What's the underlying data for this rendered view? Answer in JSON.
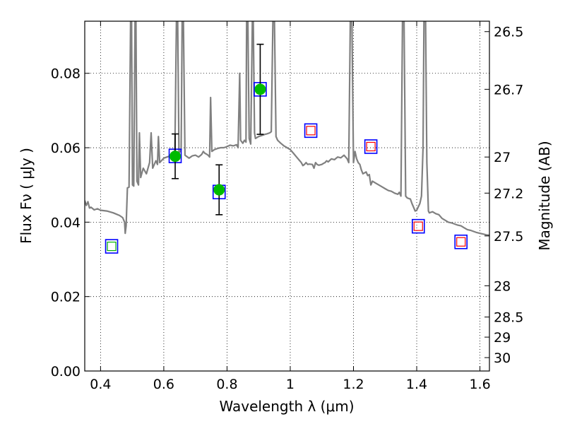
{
  "chart_data": {
    "type": "scatter",
    "xlabel": "Wavelength  λ (μm)",
    "ylabel": "Flux  Fν  ( μJy )",
    "y2label": "Magnitude (AB)",
    "xlim": [
      0.35,
      1.63
    ],
    "ylim": [
      0.0,
      0.094
    ],
    "grid": true,
    "x_ticks": [
      0.4,
      0.6,
      0.8,
      1.0,
      1.2,
      1.4,
      1.6
    ],
    "x_tick_labels": [
      "0.4",
      "0.6",
      "0.8",
      "1",
      "1.2",
      "1.4",
      "1.6"
    ],
    "y_ticks": [
      0.0,
      0.02,
      0.04,
      0.06,
      0.08
    ],
    "y_tick_labels": [
      "0.00",
      "0.02",
      "0.04",
      "0.06",
      "0.08"
    ],
    "y2_ticks": [
      {
        "label": "26.5",
        "flux": 0.0912
      },
      {
        "label": "26.7",
        "flux": 0.0757
      },
      {
        "label": "27",
        "flux": 0.0575
      },
      {
        "label": "27.2",
        "flux": 0.0478
      },
      {
        "label": "27.5",
        "flux": 0.0363
      },
      {
        "label": "28",
        "flux": 0.0229
      },
      {
        "label": "28.5",
        "flux": 0.0145
      },
      {
        "label": "29",
        "flux": 0.0091
      },
      {
        "label": "30",
        "flux": 0.0036
      }
    ],
    "series": [
      {
        "kind": "model_sed",
        "color": "#808080",
        "points": [
          [
            0.35,
            0.0458
          ],
          [
            0.355,
            0.0445
          ],
          [
            0.36,
            0.0455
          ],
          [
            0.365,
            0.0438
          ],
          [
            0.37,
            0.044
          ],
          [
            0.38,
            0.0433
          ],
          [
            0.39,
            0.0436
          ],
          [
            0.4,
            0.0432
          ],
          [
            0.42,
            0.043
          ],
          [
            0.44,
            0.0425
          ],
          [
            0.46,
            0.0418
          ],
          [
            0.47,
            0.0412
          ],
          [
            0.476,
            0.04
          ],
          [
            0.478,
            0.037
          ],
          [
            0.481,
            0.039
          ],
          [
            0.485,
            0.0492
          ],
          [
            0.49,
            0.0494
          ],
          [
            0.495,
            0.094
          ],
          [
            0.498,
            0.094
          ],
          [
            0.501,
            0.05
          ],
          [
            0.505,
            0.0497
          ],
          [
            0.509,
            0.094
          ],
          [
            0.512,
            0.094
          ],
          [
            0.515,
            0.051
          ],
          [
            0.52,
            0.05
          ],
          [
            0.523,
            0.064
          ],
          [
            0.527,
            0.052
          ],
          [
            0.535,
            0.0545
          ],
          [
            0.545,
            0.053
          ],
          [
            0.555,
            0.056
          ],
          [
            0.56,
            0.064
          ],
          [
            0.565,
            0.0545
          ],
          [
            0.575,
            0.0565
          ],
          [
            0.58,
            0.0555
          ],
          [
            0.583,
            0.063
          ],
          [
            0.587,
            0.056
          ],
          [
            0.6,
            0.0572
          ],
          [
            0.61,
            0.0575
          ],
          [
            0.62,
            0.0578
          ],
          [
            0.635,
            0.0588
          ],
          [
            0.64,
            0.094
          ],
          [
            0.644,
            0.094
          ],
          [
            0.648,
            0.0585
          ],
          [
            0.655,
            0.0595
          ],
          [
            0.658,
            0.094
          ],
          [
            0.662,
            0.094
          ],
          [
            0.667,
            0.058
          ],
          [
            0.675,
            0.0575
          ],
          [
            0.68,
            0.0572
          ],
          [
            0.685,
            0.0575
          ],
          [
            0.69,
            0.0578
          ],
          [
            0.7,
            0.058
          ],
          [
            0.71,
            0.0575
          ],
          [
            0.72,
            0.0582
          ],
          [
            0.725,
            0.059
          ],
          [
            0.73,
            0.0585
          ],
          [
            0.735,
            0.0583
          ],
          [
            0.74,
            0.058
          ],
          [
            0.745,
            0.0575
          ],
          [
            0.748,
            0.0735
          ],
          [
            0.752,
            0.059
          ],
          [
            0.76,
            0.0595
          ],
          [
            0.77,
            0.0598
          ],
          [
            0.78,
            0.06
          ],
          [
            0.79,
            0.06
          ],
          [
            0.8,
            0.0603
          ],
          [
            0.81,
            0.0607
          ],
          [
            0.82,
            0.0605
          ],
          [
            0.83,
            0.0608
          ],
          [
            0.835,
            0.06
          ],
          [
            0.84,
            0.08
          ],
          [
            0.843,
            0.062
          ],
          [
            0.85,
            0.0612
          ],
          [
            0.855,
            0.062
          ],
          [
            0.86,
            0.0615
          ],
          [
            0.862,
            0.094
          ],
          [
            0.866,
            0.094
          ],
          [
            0.87,
            0.0625
          ],
          [
            0.875,
            0.061
          ],
          [
            0.88,
            0.094
          ],
          [
            0.883,
            0.094
          ],
          [
            0.887,
            0.064
          ],
          [
            0.89,
            0.0625
          ],
          [
            0.9,
            0.063
          ],
          [
            0.91,
            0.0633
          ],
          [
            0.92,
            0.0636
          ],
          [
            0.925,
            0.0637
          ],
          [
            0.935,
            0.064
          ],
          [
            0.94,
            0.0643
          ],
          [
            0.945,
            0.094
          ],
          [
            0.95,
            0.094
          ],
          [
            0.955,
            0.063
          ],
          [
            0.96,
            0.062
          ],
          [
            0.97,
            0.0612
          ],
          [
            0.98,
            0.0605
          ],
          [
            0.99,
            0.06
          ],
          [
            1.0,
            0.0595
          ],
          [
            1.01,
            0.0585
          ],
          [
            1.02,
            0.0575
          ],
          [
            1.03,
            0.0565
          ],
          [
            1.035,
            0.056
          ],
          [
            1.04,
            0.0552
          ],
          [
            1.045,
            0.0555
          ],
          [
            1.05,
            0.056
          ],
          [
            1.055,
            0.0555
          ],
          [
            1.06,
            0.0556
          ],
          [
            1.07,
            0.0555
          ],
          [
            1.075,
            0.0545
          ],
          [
            1.08,
            0.056
          ],
          [
            1.085,
            0.0555
          ],
          [
            1.09,
            0.0553
          ],
          [
            1.1,
            0.0555
          ],
          [
            1.105,
            0.0558
          ],
          [
            1.11,
            0.056
          ],
          [
            1.115,
            0.0565
          ],
          [
            1.12,
            0.0562
          ],
          [
            1.13,
            0.057
          ],
          [
            1.14,
            0.0568
          ],
          [
            1.15,
            0.0575
          ],
          [
            1.16,
            0.0573
          ],
          [
            1.17,
            0.058
          ],
          [
            1.18,
            0.057
          ],
          [
            1.185,
            0.056
          ],
          [
            1.19,
            0.094
          ],
          [
            1.195,
            0.094
          ],
          [
            1.2,
            0.056
          ],
          [
            1.205,
            0.059
          ],
          [
            1.21,
            0.057
          ],
          [
            1.215,
            0.056
          ],
          [
            1.22,
            0.0555
          ],
          [
            1.225,
            0.054
          ],
          [
            1.23,
            0.053
          ],
          [
            1.24,
            0.0535
          ],
          [
            1.245,
            0.0525
          ],
          [
            1.25,
            0.0528
          ],
          [
            1.255,
            0.05
          ],
          [
            1.26,
            0.051
          ],
          [
            1.27,
            0.0505
          ],
          [
            1.28,
            0.05
          ],
          [
            1.29,
            0.0495
          ],
          [
            1.3,
            0.049
          ],
          [
            1.31,
            0.0485
          ],
          [
            1.32,
            0.0483
          ],
          [
            1.33,
            0.0478
          ],
          [
            1.34,
            0.0475
          ],
          [
            1.345,
            0.048
          ],
          [
            1.35,
            0.047
          ],
          [
            1.355,
            0.094
          ],
          [
            1.36,
            0.094
          ],
          [
            1.365,
            0.047
          ],
          [
            1.37,
            0.0465
          ],
          [
            1.38,
            0.0462
          ],
          [
            1.385,
            0.045
          ],
          [
            1.39,
            0.044
          ],
          [
            1.395,
            0.043
          ],
          [
            1.4,
            0.0432
          ],
          [
            1.41,
            0.045
          ],
          [
            1.415,
            0.047
          ],
          [
            1.42,
            0.06
          ],
          [
            1.423,
            0.094
          ],
          [
            1.428,
            0.094
          ],
          [
            1.432,
            0.056
          ],
          [
            1.437,
            0.043
          ],
          [
            1.44,
            0.0425
          ],
          [
            1.45,
            0.0428
          ],
          [
            1.46,
            0.0423
          ],
          [
            1.47,
            0.042
          ],
          [
            1.48,
            0.041
          ],
          [
            1.49,
            0.0405
          ],
          [
            1.5,
            0.04
          ],
          [
            1.51,
            0.0398
          ],
          [
            1.52,
            0.0395
          ],
          [
            1.53,
            0.0392
          ],
          [
            1.54,
            0.039
          ],
          [
            1.55,
            0.0385
          ],
          [
            1.56,
            0.038
          ],
          [
            1.57,
            0.0378
          ],
          [
            1.58,
            0.0375
          ],
          [
            1.59,
            0.0372
          ],
          [
            1.6,
            0.037
          ],
          [
            1.61,
            0.0368
          ],
          [
            1.62,
            0.0366
          ],
          [
            1.63,
            0.0365
          ]
        ]
      },
      {
        "kind": "model_band_flux",
        "marker": "square",
        "edge_color": "#0000ff",
        "x": [
          0.435,
          0.636,
          0.775,
          0.905,
          1.065,
          1.255,
          1.405,
          1.54
        ],
        "y": [
          0.0335,
          0.0578,
          0.0481,
          0.0757,
          0.0646,
          0.0603,
          0.0389,
          0.0347
        ]
      },
      {
        "kind": "upper_limit",
        "marker": "small-square",
        "edge_color": "#ff0000",
        "x": [
          1.065,
          1.255,
          1.405,
          1.54
        ],
        "y": [
          0.0646,
          0.0603,
          0.0389,
          0.0347
        ]
      },
      {
        "kind": "non_detection",
        "marker": "small-square",
        "edge_color": "#00b000",
        "x": [
          0.435
        ],
        "y": [
          0.0335
        ]
      },
      {
        "kind": "observed",
        "marker": "circle",
        "color": "#00bb00",
        "error_color": "#000000",
        "x": [
          0.636,
          0.775,
          0.905
        ],
        "y": [
          0.0577,
          0.0487,
          0.0757
        ],
        "yerr": [
          0.006,
          0.0067,
          0.0121
        ]
      }
    ]
  }
}
